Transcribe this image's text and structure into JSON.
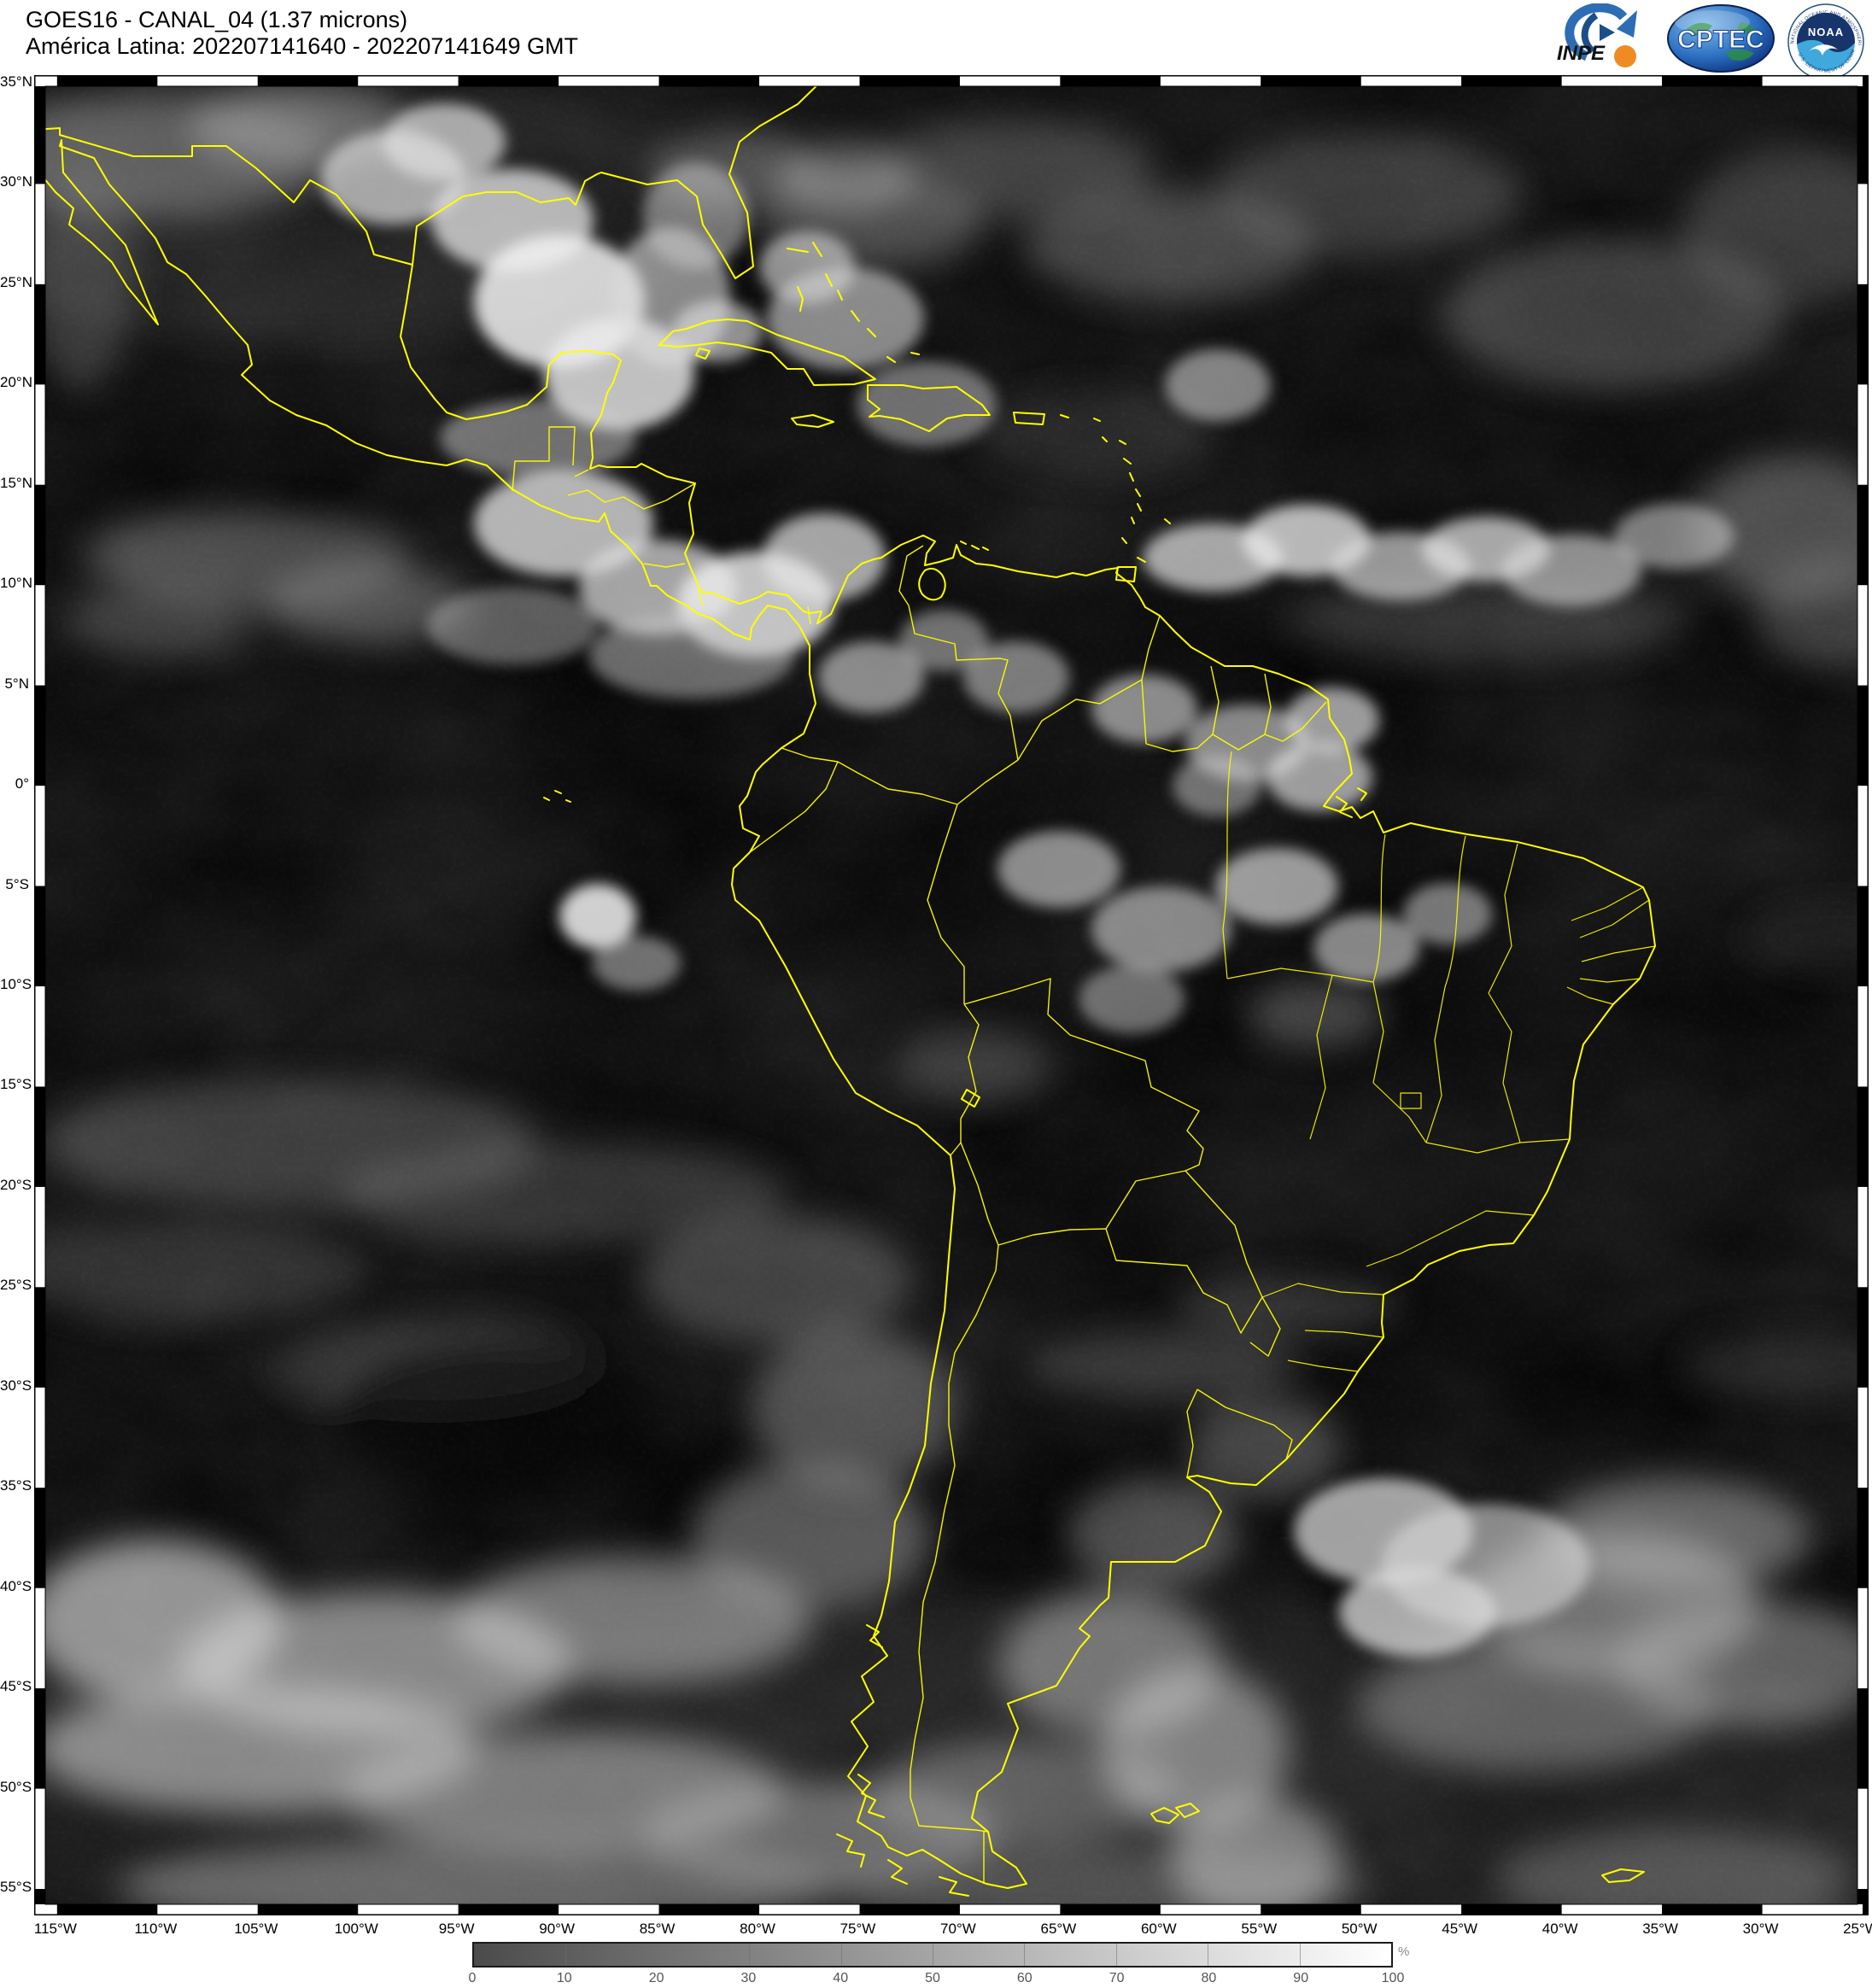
{
  "header": {
    "line1": "GOES16 - CANAL_04 (1.37 microns)",
    "line2": "América Latina: 202207141640 - 202207141649 GMT"
  },
  "logos": {
    "inpe_label": "INPE",
    "cptec_label": "CPTEC",
    "noaa_label": "NOAA",
    "noaa_ring_top": "NATIONAL OCEANIC AND ATMOSPHERIC ADMINISTRATION",
    "noaa_ring_bottom": "U.S. DEPARTMENT OF COMMERCE"
  },
  "map": {
    "line_color": "#ffff00",
    "background_color": "#070707",
    "lat_ticks": [
      {
        "deg": 35,
        "label": "35°N"
      },
      {
        "deg": 30,
        "label": "30°N"
      },
      {
        "deg": 25,
        "label": "25°N"
      },
      {
        "deg": 20,
        "label": "20°N"
      },
      {
        "deg": 15,
        "label": "15°N"
      },
      {
        "deg": 10,
        "label": "10°N"
      },
      {
        "deg": 5,
        "label": "5°N"
      },
      {
        "deg": 0,
        "label": "0°"
      },
      {
        "deg": -5,
        "label": "5°S"
      },
      {
        "deg": -10,
        "label": "10°S"
      },
      {
        "deg": -15,
        "label": "15°S"
      },
      {
        "deg": -20,
        "label": "20°S"
      },
      {
        "deg": -25,
        "label": "25°S"
      },
      {
        "deg": -30,
        "label": "30°S"
      },
      {
        "deg": -35,
        "label": "35°S"
      },
      {
        "deg": -40,
        "label": "40°S"
      },
      {
        "deg": -45,
        "label": "45°S"
      },
      {
        "deg": -50,
        "label": "50°S"
      },
      {
        "deg": -55,
        "label": "55°S"
      }
    ],
    "lon_ticks": [
      {
        "deg": -115,
        "label": "115°W"
      },
      {
        "deg": -110,
        "label": "110°W"
      },
      {
        "deg": -105,
        "label": "105°W"
      },
      {
        "deg": -100,
        "label": "100°W"
      },
      {
        "deg": -95,
        "label": "95°W"
      },
      {
        "deg": -90,
        "label": "90°W"
      },
      {
        "deg": -85,
        "label": "85°W"
      },
      {
        "deg": -80,
        "label": "80°W"
      },
      {
        "deg": -75,
        "label": "75°W"
      },
      {
        "deg": -70,
        "label": "70°W"
      },
      {
        "deg": -65,
        "label": "65°W"
      },
      {
        "deg": -60,
        "label": "60°W"
      },
      {
        "deg": -55,
        "label": "55°W"
      },
      {
        "deg": -50,
        "label": "50°W"
      },
      {
        "deg": -45,
        "label": "45°W"
      },
      {
        "deg": -40,
        "label": "40°W"
      },
      {
        "deg": -35,
        "label": "35°W"
      },
      {
        "deg": -30,
        "label": "30°W"
      },
      {
        "deg": -25,
        "label": "25°W"
      }
    ]
  },
  "colorbar": {
    "unit": "%",
    "tick_labels": [
      "0",
      "10",
      "20",
      "30",
      "40",
      "50",
      "60",
      "70",
      "80",
      "90",
      "100"
    ],
    "start_color": "#4b4b4b",
    "end_color": "#ffffff"
  }
}
